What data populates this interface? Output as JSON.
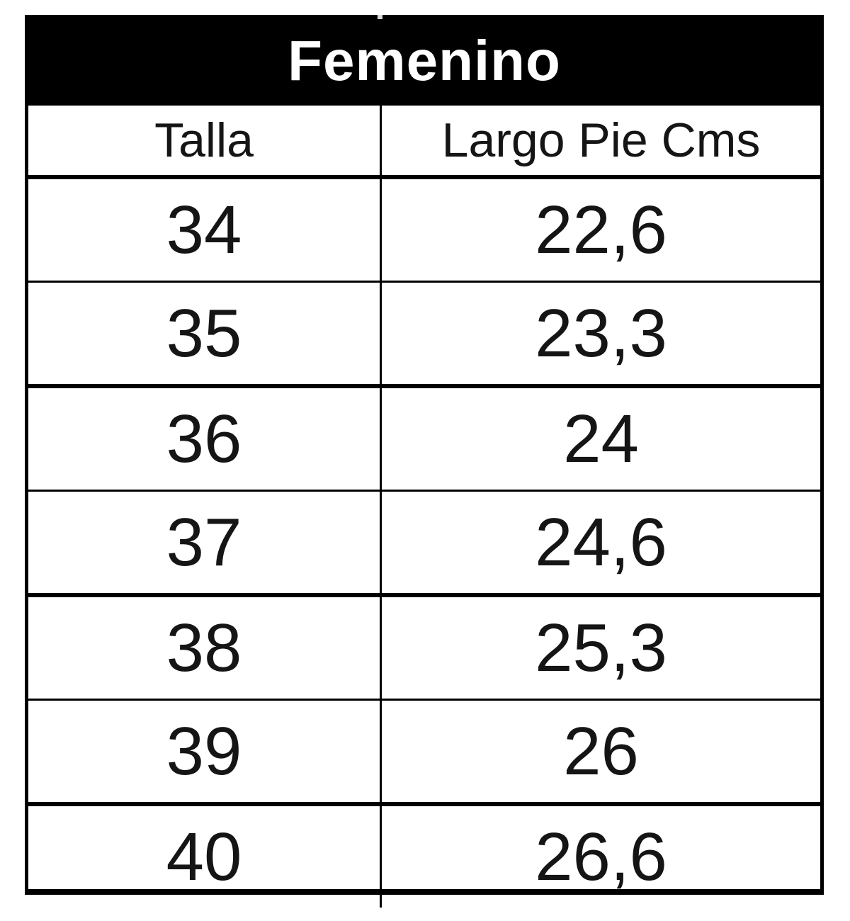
{
  "chart_data": {
    "type": "table",
    "title": "Femenino",
    "columns": [
      "Talla",
      "Largo Pie Cms"
    ],
    "rows": [
      [
        "34",
        "22,6"
      ],
      [
        "35",
        "23,3"
      ],
      [
        "36",
        "24"
      ],
      [
        "37",
        "24,6"
      ],
      [
        "38",
        "25,3"
      ],
      [
        "39",
        "26"
      ],
      [
        "40",
        "26,6"
      ]
    ],
    "layout_hints": {
      "title_style": "white bold text on black bar spanning both columns",
      "decimal_separator": ","
    }
  },
  "colors": {
    "header_bg": "#000000",
    "header_text": "#ffffff",
    "border": "#000000",
    "cell_text": "#151515",
    "background": "#ffffff"
  }
}
